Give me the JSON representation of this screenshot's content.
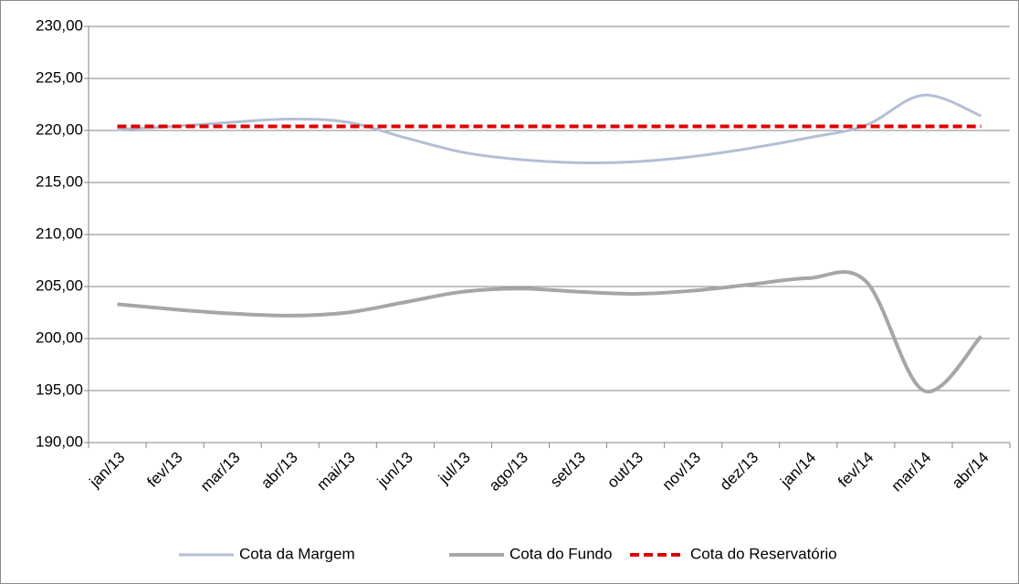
{
  "chart_data": {
    "type": "line",
    "categories": [
      "jan/13",
      "fev/13",
      "mar/13",
      "abr/13",
      "mai/13",
      "jun/13",
      "jul/13",
      "ago/13",
      "set/13",
      "out/13",
      "nov/13",
      "dez/13",
      "jan/14",
      "fev/14",
      "mar/14",
      "abr/14"
    ],
    "series": [
      {
        "name": "Cota da Margem",
        "color": "#b4bfd4",
        "values": [
          220.1,
          220.4,
          220.8,
          221.1,
          220.8,
          219.3,
          217.9,
          217.2,
          216.9,
          217.0,
          217.5,
          218.3,
          219.3,
          220.5,
          223.4,
          221.4
        ]
      },
      {
        "name": "Cota do Fundo",
        "color": "#a6a6a6",
        "values": [
          203.3,
          202.8,
          202.4,
          202.2,
          202.5,
          203.5,
          204.5,
          204.8,
          204.5,
          204.3,
          204.6,
          205.2,
          205.8,
          205.5,
          195.0,
          200.2
        ]
      },
      {
        "name": "Cota do Reservatório",
        "color": "#e00000",
        "dashed": true,
        "values": [
          220.4,
          220.4,
          220.4,
          220.4,
          220.4,
          220.4,
          220.4,
          220.4,
          220.4,
          220.4,
          220.4,
          220.4,
          220.4,
          220.4,
          220.4,
          220.4
        ]
      }
    ],
    "ylim": [
      190,
      230
    ],
    "yticks": [
      {
        "value": 190,
        "label": "190,00"
      },
      {
        "value": 195,
        "label": "195,00"
      },
      {
        "value": 200,
        "label": "200,00"
      },
      {
        "value": 205,
        "label": "205,00"
      },
      {
        "value": 210,
        "label": "210,00"
      },
      {
        "value": 215,
        "label": "215,00"
      },
      {
        "value": 220,
        "label": "220,00"
      },
      {
        "value": 225,
        "label": "225,00"
      },
      {
        "value": 230,
        "label": "230,00"
      }
    ],
    "grid": true,
    "legend": "bottom",
    "smooth": true
  }
}
